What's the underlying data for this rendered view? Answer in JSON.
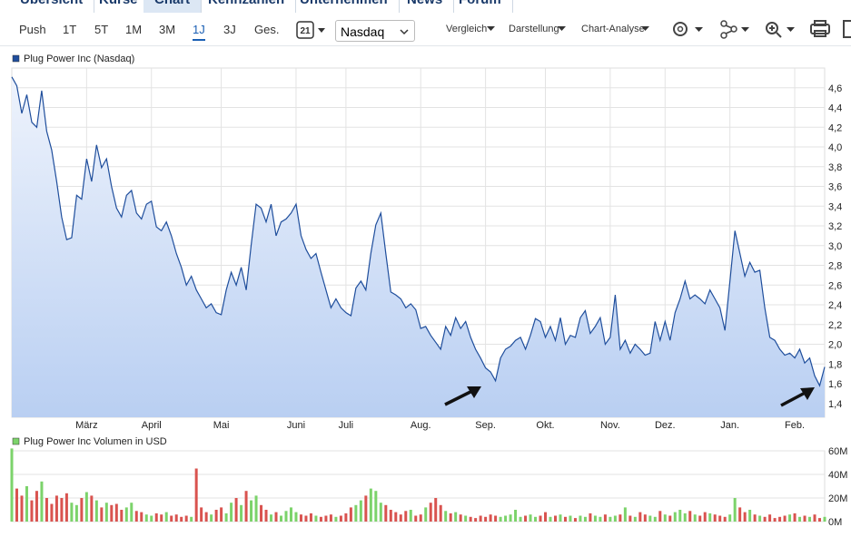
{
  "nav": {
    "tabs": [
      "Übersicht",
      "Kurse",
      "Chart",
      "Kennzahlen",
      "Unternehmen",
      "News",
      "Forum"
    ]
  },
  "toolbar": {
    "periods": [
      "Push",
      "1T",
      "5T",
      "1M",
      "3M",
      "1J",
      "3J",
      "Ges."
    ],
    "calendar": "21",
    "exchange": "Nasdaq",
    "menus": [
      "Vergleich",
      "Darstellung",
      "Chart-Analyse"
    ]
  },
  "chart_data": [
    {
      "type": "area",
      "grid": true,
      "series": [
        {
          "name": "Plug Power Inc (Nasdaq)",
          "color": "#1f4e9c",
          "values": [
            4.71,
            4.62,
            4.34,
            4.53,
            4.25,
            4.2,
            4.57,
            4.16,
            3.97,
            3.65,
            3.29,
            3.06,
            3.08,
            3.51,
            3.47,
            3.88,
            3.65,
            4.02,
            3.79,
            3.88,
            3.6,
            3.38,
            3.29,
            3.51,
            3.56,
            3.33,
            3.27,
            3.42,
            3.45,
            3.19,
            3.15,
            3.24,
            3.1,
            2.92,
            2.78,
            2.6,
            2.69,
            2.55,
            2.46,
            2.37,
            2.41,
            2.32,
            2.3,
            2.55,
            2.73,
            2.6,
            2.78,
            2.55,
            3.01,
            3.42,
            3.38,
            3.24,
            3.42,
            3.1,
            3.24,
            3.27,
            3.33,
            3.42,
            3.1,
            2.96,
            2.87,
            2.92,
            2.73,
            2.55,
            2.37,
            2.46,
            2.37,
            2.32,
            2.29,
            2.57,
            2.64,
            2.55,
            2.92,
            3.21,
            3.33,
            2.92,
            2.53,
            2.5,
            2.46,
            2.37,
            2.41,
            2.35,
            2.16,
            2.18,
            2.09,
            2.02,
            1.95,
            2.18,
            2.09,
            2.27,
            2.16,
            2.23,
            2.07,
            1.95,
            1.86,
            1.76,
            1.72,
            1.63,
            1.86,
            1.95,
            1.98,
            2.04,
            2.07,
            1.95,
            2.09,
            2.26,
            2.23,
            2.07,
            2.18,
            2.04,
            2.27,
            2.0,
            2.09,
            2.07,
            2.27,
            2.34,
            2.11,
            2.18,
            2.27,
            2.0,
            2.07,
            2.5,
            1.95,
            2.04,
            1.91,
            2.0,
            1.95,
            1.89,
            1.91,
            2.23,
            2.04,
            2.23,
            2.04,
            2.32,
            2.46,
            2.64,
            2.46,
            2.5,
            2.46,
            2.41,
            2.55,
            2.46,
            2.37,
            2.14,
            2.64,
            3.15,
            2.92,
            2.69,
            2.83,
            2.73,
            2.75,
            2.37,
            2.07,
            2.04,
            1.95,
            1.89,
            1.91,
            1.86,
            1.95,
            1.81,
            1.86,
            1.68,
            1.58,
            1.77
          ]
        }
      ],
      "xlim": [
        0,
        163
      ],
      "xticks": [
        {
          "value": 15,
          "label": "März"
        },
        {
          "value": 28,
          "label": "April"
        },
        {
          "value": 42,
          "label": "Mai"
        },
        {
          "value": 57,
          "label": "Juni"
        },
        {
          "value": 67,
          "label": "Juli"
        },
        {
          "value": 82,
          "label": "Aug."
        },
        {
          "value": 95,
          "label": "Sep."
        },
        {
          "value": 107,
          "label": "Okt."
        },
        {
          "value": 120,
          "label": "Nov."
        },
        {
          "value": 131,
          "label": "Dez."
        },
        {
          "value": 144,
          "label": "Jan."
        },
        {
          "value": 157,
          "label": "Feb."
        }
      ],
      "ylim": [
        1.26,
        4.8
      ],
      "yticks": [
        {
          "value": 1.4,
          "label": "1,4"
        },
        {
          "value": 1.6,
          "label": "1,6"
        },
        {
          "value": 1.8,
          "label": "1,8"
        },
        {
          "value": 2.0,
          "label": "2,0"
        },
        {
          "value": 2.2,
          "label": "2,2"
        },
        {
          "value": 2.4,
          "label": "2,4"
        },
        {
          "value": 2.6,
          "label": "2,6"
        },
        {
          "value": 2.8,
          "label": "2,8"
        },
        {
          "value": 3.0,
          "label": "3,0"
        },
        {
          "value": 3.2,
          "label": "3,2"
        },
        {
          "value": 3.4,
          "label": "3,4"
        },
        {
          "value": 3.6,
          "label": "3,6"
        },
        {
          "value": 3.8,
          "label": "3,8"
        },
        {
          "value": 4.0,
          "label": "4,0"
        },
        {
          "value": 4.2,
          "label": "4,2"
        },
        {
          "value": 4.4,
          "label": "4,4"
        },
        {
          "value": 4.6,
          "label": "4,6"
        }
      ]
    },
    {
      "type": "bar",
      "grid": true,
      "down_color": "#d9534f",
      "series": [
        {
          "name": "Plug Power Inc Volumen in USD",
          "color": "#7cd36b",
          "values": [
            62,
            28,
            22,
            30,
            18,
            26,
            34,
            20,
            15,
            22,
            20,
            24,
            16,
            14,
            20,
            25,
            22,
            18,
            12,
            16,
            14,
            15,
            10,
            12,
            16,
            9,
            8,
            6,
            5,
            7,
            6,
            8,
            5,
            6,
            4,
            5,
            4,
            45,
            12,
            8,
            6,
            10,
            12,
            7,
            16,
            20,
            14,
            26,
            18,
            22,
            14,
            10,
            6,
            8,
            5,
            9,
            12,
            8,
            6,
            5,
            7,
            5,
            4,
            5,
            6,
            4,
            5,
            7,
            12,
            14,
            18,
            22,
            28,
            26,
            16,
            14,
            10,
            8,
            6,
            9,
            10,
            5,
            6,
            12,
            16,
            20,
            14,
            9,
            7,
            8,
            6,
            5,
            4,
            3,
            5,
            4,
            6,
            5,
            4,
            5,
            6,
            10,
            4,
            5,
            6,
            4,
            5,
            8,
            4,
            5,
            6,
            4,
            5,
            3,
            5,
            4,
            7,
            5,
            4,
            6,
            4,
            5,
            6,
            12,
            5,
            4,
            8,
            6,
            5,
            4,
            9,
            6,
            5,
            8,
            10,
            7,
            9,
            6,
            5,
            8,
            7,
            6,
            5,
            4,
            6,
            20,
            12,
            8,
            10,
            6,
            5,
            4,
            6,
            3,
            4,
            5,
            6,
            7,
            4,
            5,
            4,
            6,
            3,
            4
          ]
        }
      ],
      "ylim": [
        0,
        60
      ],
      "yticks": [
        {
          "value": 0,
          "label": "0M"
        },
        {
          "value": 20,
          "label": "20M"
        },
        {
          "value": 40,
          "label": "40M"
        },
        {
          "value": 60,
          "label": "60M"
        }
      ]
    }
  ]
}
